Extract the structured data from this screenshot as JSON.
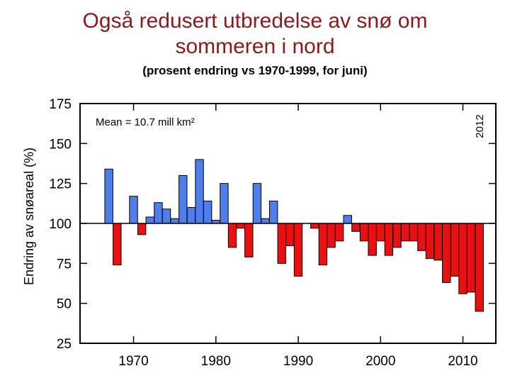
{
  "chart_data": {
    "type": "bar",
    "title_line1": "Også redusert utbredelse av snø om",
    "title_line2": "sommeren i nord",
    "subtitle": "(prosent endring vs 1970-1999, for juni)",
    "ylabel": "Endring av snøareal (%)",
    "xlabel": "",
    "annotation_mean": "Mean =  10.7 mill km²",
    "annotation_year": "2012",
    "baseline": 100,
    "ylim": [
      25,
      175
    ],
    "yticks": [
      25,
      50,
      75,
      100,
      125,
      150,
      175
    ],
    "xlim": [
      1963.5,
      2014
    ],
    "xticks": [
      1970,
      1980,
      1990,
      2000,
      2010
    ],
    "x": [
      1967,
      1968,
      1969,
      1970,
      1971,
      1972,
      1973,
      1974,
      1975,
      1976,
      1977,
      1978,
      1979,
      1980,
      1981,
      1982,
      1983,
      1984,
      1985,
      1986,
      1987,
      1988,
      1989,
      1990,
      1991,
      1992,
      1993,
      1994,
      1995,
      1996,
      1997,
      1998,
      1999,
      2000,
      2001,
      2002,
      2003,
      2004,
      2005,
      2006,
      2007,
      2008,
      2009,
      2010,
      2011,
      2012
    ],
    "values": [
      134,
      74,
      100,
      117,
      93,
      104,
      113,
      109,
      103,
      130,
      110,
      140,
      114,
      102,
      125,
      85,
      97,
      79,
      125,
      103,
      114,
      75,
      86,
      67,
      100,
      97,
      74,
      85,
      89,
      105,
      95,
      89,
      80,
      89,
      80,
      85,
      89,
      89,
      83,
      78,
      77,
      63,
      67,
      56,
      57,
      45
    ],
    "colors": {
      "above": "#4D7EEB",
      "below": "#E81010",
      "title": "#8B1A1A"
    }
  }
}
